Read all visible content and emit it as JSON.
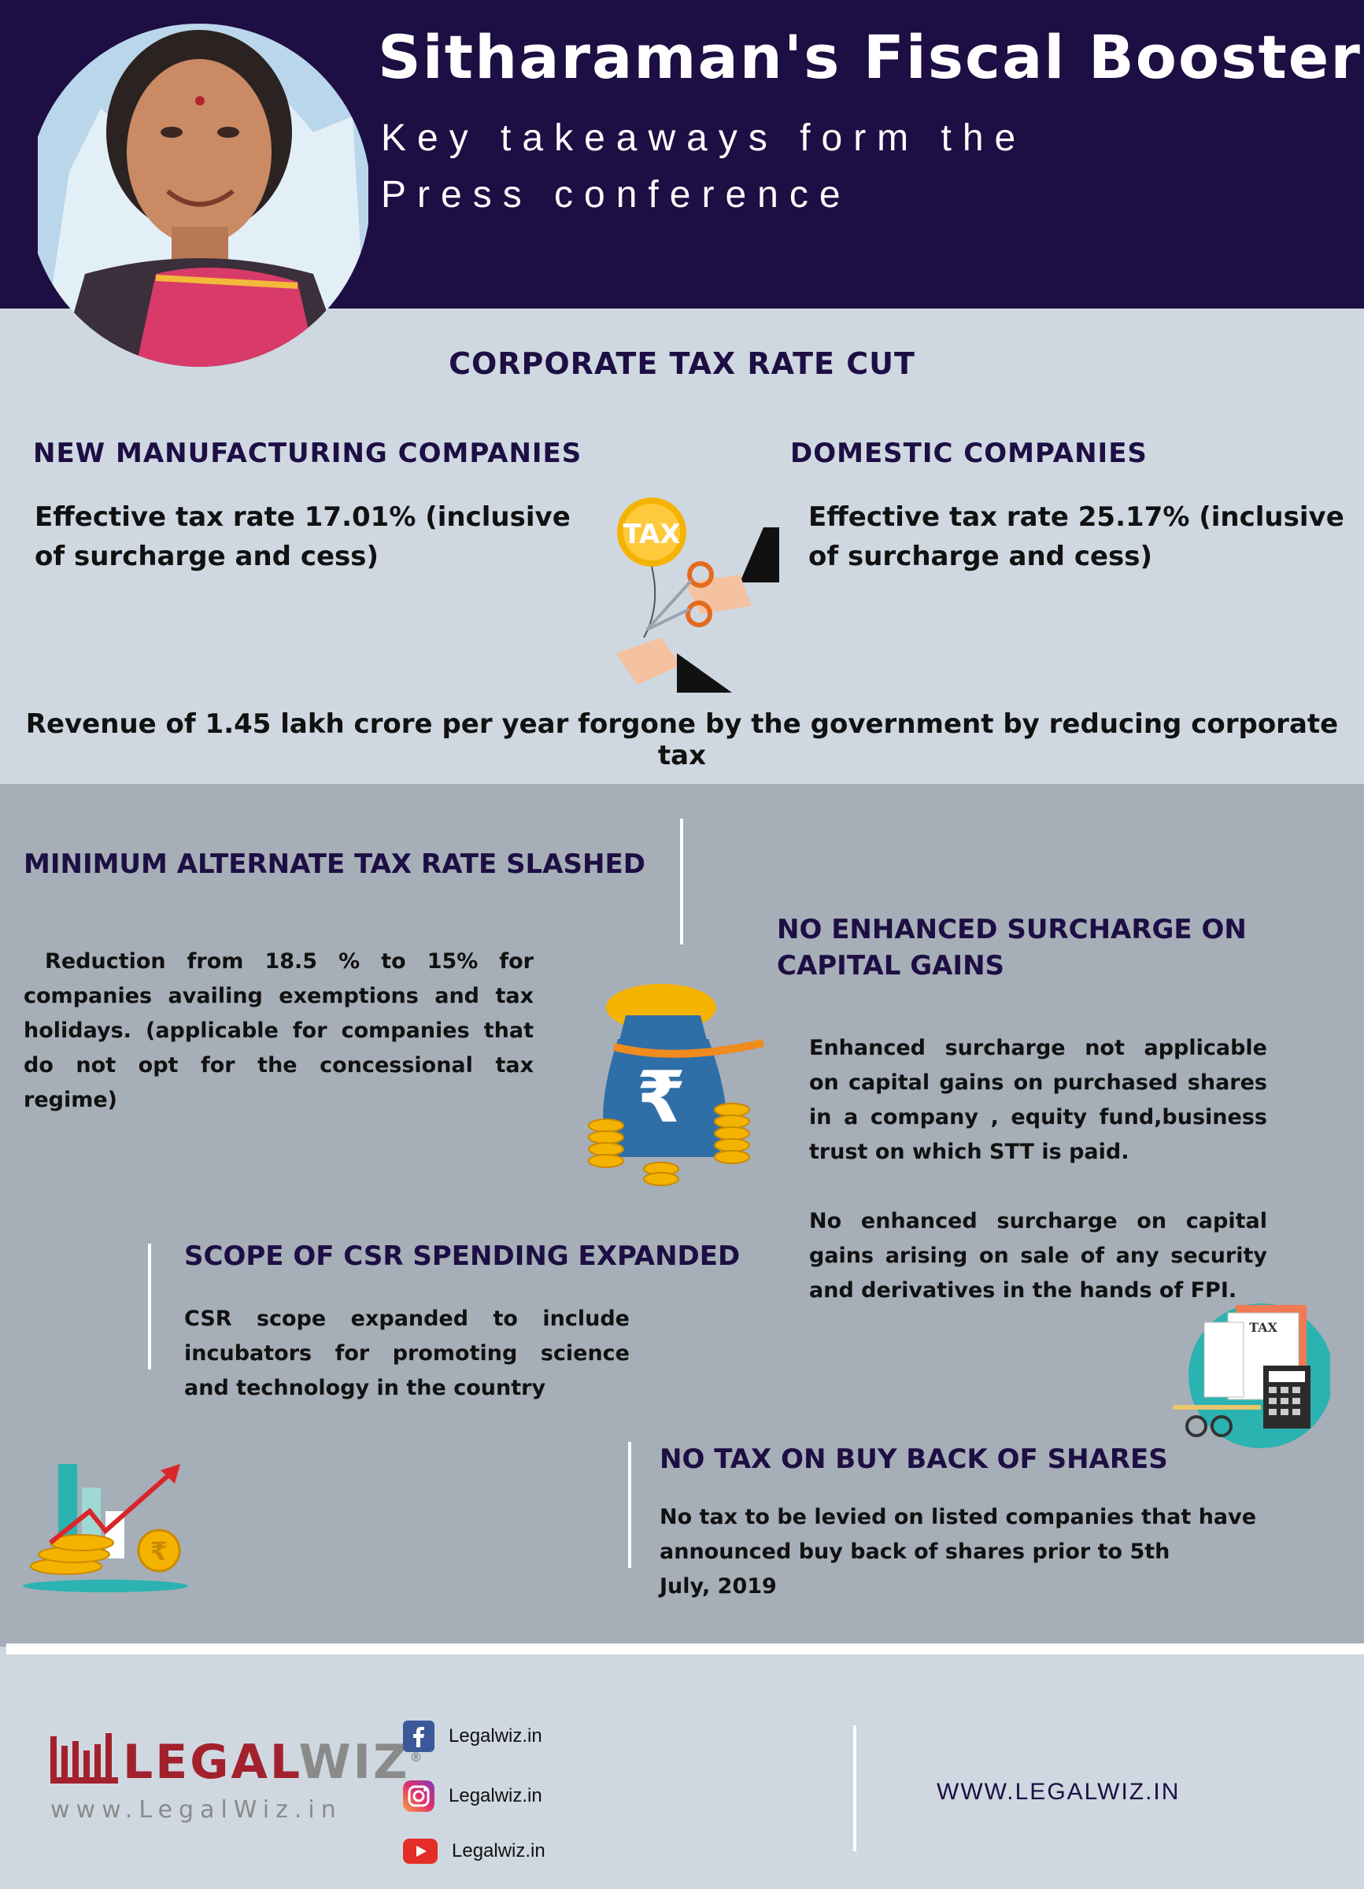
{
  "header": {
    "title": "Sitharaman's Fiscal Booster",
    "subtitle_line1": "Key takeaways form the",
    "subtitle_line2": "Press conference"
  },
  "corporate": {
    "heading": "CORPORATE TAX RATE CUT",
    "new_mfg": {
      "heading": "NEW MANUFACTURING COMPANIES",
      "text": "Effective tax rate 17.01% (inclusive of surcharge and cess)"
    },
    "domestic": {
      "heading": "DOMESTIC COMPANIES",
      "text": "Effective tax rate 25.17% (inclusive of surcharge and cess)"
    },
    "tax_badge": "TAX",
    "revenue_text": "Revenue of  1.45 lakh crore per year forgone by the government by reducing corporate tax"
  },
  "mat": {
    "heading": "MINIMUM ALTERNATE TAX RATE SLASHED",
    "text": " Reduction from 18.5 % to 15% for companies availing exemptions and tax holidays. (applicable for companies that do not opt for the concessional tax regime)"
  },
  "surcharge": {
    "heading": "NO ENHANCED SURCHARGE ON CAPITAL GAINS",
    "text1": "Enhanced surcharge not applicable on capital gains on purchased shares in a company , equity fund,business trust on which STT is paid.",
    "text2": "No enhanced surcharge on capital gains arising on sale of any security and derivatives in the hands of FPI."
  },
  "csr": {
    "heading": "SCOPE OF CSR SPENDING EXPANDED",
    "text": "CSR scope expanded to include incubators for promoting science and technology in the country"
  },
  "buyback": {
    "heading": "NO TAX ON BUY BACK OF SHARES",
    "text_line1": "No tax to be levied on listed companies that have",
    "text_line2": "announced buy back of shares prior to 5th",
    "text_line3": "July, 2019"
  },
  "tax_doc_label": "TAX",
  "footer": {
    "logo_word_a": "LEGAL",
    "logo_word_b": "WIZ",
    "logo_reg": "®",
    "logo_url": "www.LegalWiz.in",
    "socials": [
      {
        "icon": "facebook-icon",
        "label": "Legalwiz.in"
      },
      {
        "icon": "instagram-icon",
        "label": "Legalwiz.in"
      },
      {
        "icon": "youtube-icon",
        "label": "Legalwiz.in"
      }
    ],
    "website": "WWW.LEGALWIZ.IN"
  },
  "colors": {
    "navy": "#1d0e43",
    "light_bg": "#cfd8e1",
    "gray_bg": "#a6aeb8",
    "logo_red": "#a3212c",
    "gold": "#f5b301"
  }
}
